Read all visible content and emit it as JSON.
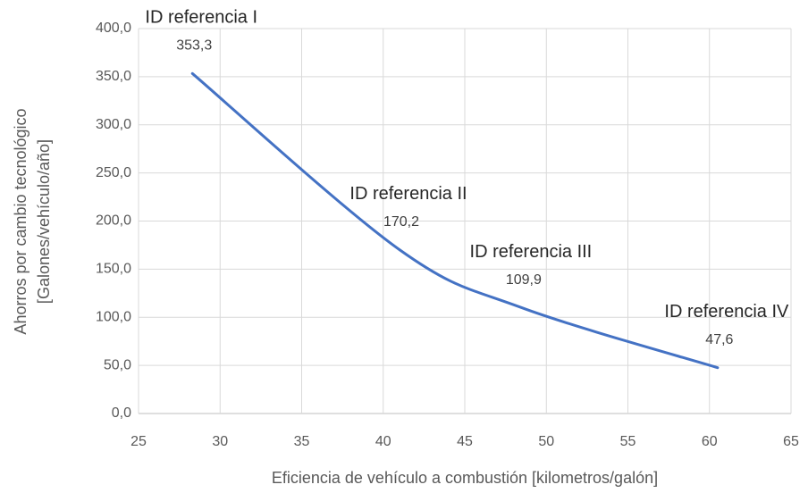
{
  "chart_data": {
    "type": "line",
    "x_label": "Eficiencia de vehículo a combustión [kilometros/galón]",
    "y_label": [
      "Ahorros por cambio tecnológico",
      "[Galones/vehículo/año]"
    ],
    "series": [
      {
        "color": "#4472c4",
        "x": [
          28.3,
          41,
          48.5,
          60.5
        ],
        "values": [
          353.3,
          170.2,
          109.9,
          47.6
        ],
        "value_labels": [
          "353,3",
          "170,2",
          "109,9",
          "47,6"
        ],
        "point_labels": [
          "ID referencia I",
          "ID referencia II",
          "ID referencia III",
          "ID referencia IV"
        ]
      }
    ],
    "xlim": [
      25,
      65
    ],
    "xticks": [
      25,
      30,
      35,
      40,
      45,
      50,
      55,
      60,
      65
    ],
    "ylim": [
      0,
      400
    ],
    "yticks": [
      {
        "value": 0,
        "label": "0,0"
      },
      {
        "value": 50,
        "label": "50,0"
      },
      {
        "value": 100,
        "label": "100,0"
      },
      {
        "value": 150,
        "label": "150,0"
      },
      {
        "value": 200,
        "label": "200,0"
      },
      {
        "value": 250,
        "label": "250,0"
      },
      {
        "value": 300,
        "label": "300,0"
      },
      {
        "value": 350,
        "label": "350,0"
      },
      {
        "value": 400,
        "label": "400,0"
      }
    ],
    "grid": true
  }
}
